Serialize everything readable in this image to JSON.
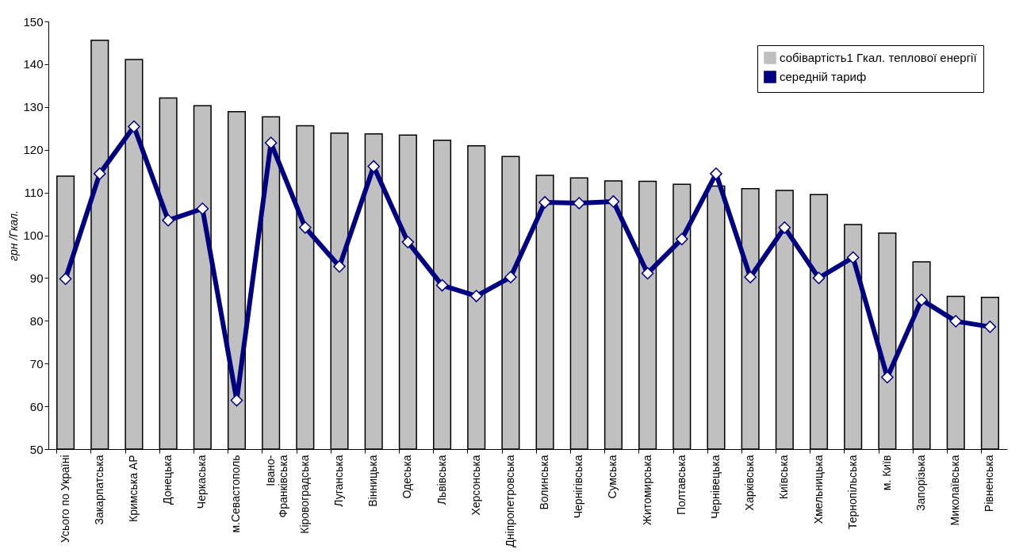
{
  "chart_data": {
    "type": "bar",
    "ylabel": "грн /Гкал.",
    "categories": [
      "Усього по Україні",
      "Закарпатська",
      "Кримська АР",
      "Донецька",
      "Черкаська",
      "м.Севастополь",
      "Івано-Франківська",
      "Кіровоградська",
      "Луганська",
      "Вінницька",
      "Одеська",
      "Львівська",
      "Херсонська",
      "Дніпропетровська",
      "Волинська",
      "Чернігівська",
      "Сумська",
      "Житомирська",
      "Полтавська",
      "Чернівецька",
      "Харківська",
      "Київська",
      "Хмельницька",
      "Тернопільська",
      "м. Київ",
      "Запорізька",
      "Миколаївська",
      "Рівненська"
    ],
    "series": [
      {
        "name": "собівартість1 Гкал. теплової енергії",
        "color": "#c0c0c0",
        "values": [
          113.8,
          145.6,
          141.1,
          132.1,
          130.3,
          128.9,
          127.7,
          125.6,
          123.9,
          123.7,
          123.4,
          122.2,
          120.9,
          118.4,
          114.0,
          113.4,
          112.7,
          112.6,
          111.9,
          111.5,
          110.9,
          110.5,
          109.5,
          102.5,
          100.5,
          93.8,
          85.7,
          85.5
        ]
      },
      {
        "name": "середній тариф",
        "type": "line",
        "color": "#000080",
        "marker": "diamond",
        "values": [
          89.8,
          114.4,
          125.4,
          103.5,
          106.2,
          61.4,
          121.6,
          101.8,
          92.7,
          116.1,
          98.4,
          88.3,
          85.8,
          90.2,
          107.7,
          107.5,
          107.9,
          91.1,
          99.1,
          114.4,
          90.2,
          101.8,
          90.0,
          94.8,
          66.8,
          84.9,
          79.9,
          78.6
        ]
      }
    ],
    "ylim": [
      50,
      150
    ],
    "yticks": [
      50,
      60,
      70,
      80,
      90,
      100,
      110,
      120,
      130,
      140,
      150
    ],
    "legend": "top right"
  }
}
